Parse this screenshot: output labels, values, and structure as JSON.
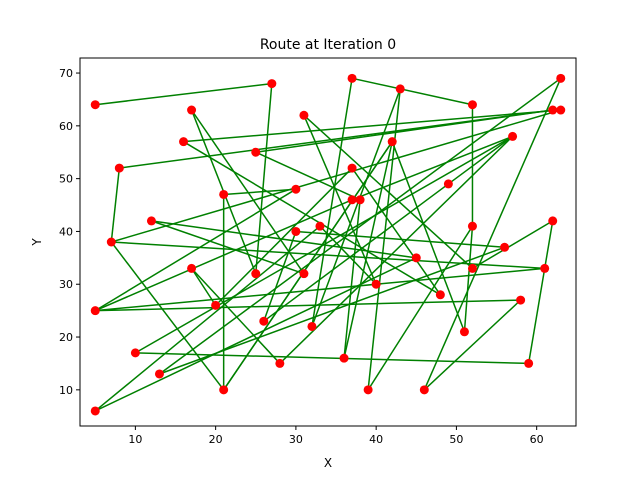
{
  "chart_data": {
    "type": "scatter",
    "title": "Route at Iteration 0",
    "xlabel": "X",
    "ylabel": "Y",
    "xlim": [
      3.1,
      64.9
    ],
    "ylim": [
      3.15,
      72.85
    ],
    "xticks": [
      10,
      20,
      30,
      40,
      50,
      60
    ],
    "yticks": [
      10,
      20,
      30,
      40,
      50,
      60,
      70
    ],
    "grid": false,
    "route_color": "#008000",
    "point_color": "#ff0000",
    "route": [
      [
        5,
        64
      ],
      [
        27,
        68
      ],
      [
        25,
        32
      ],
      [
        17,
        63
      ],
      [
        31,
        32
      ],
      [
        12,
        42
      ],
      [
        45,
        35
      ],
      [
        5,
        6
      ],
      [
        33,
        41
      ],
      [
        40,
        30
      ],
      [
        31,
        62
      ],
      [
        52,
        33
      ],
      [
        62,
        42
      ],
      [
        59,
        15
      ],
      [
        10,
        17
      ],
      [
        57,
        58
      ],
      [
        37,
        46
      ],
      [
        5,
        25
      ],
      [
        30,
        48
      ],
      [
        21,
        47
      ],
      [
        21,
        10
      ],
      [
        42,
        57
      ],
      [
        36,
        16
      ],
      [
        38,
        46
      ],
      [
        25,
        55
      ],
      [
        62,
        63
      ],
      [
        8,
        52
      ],
      [
        7,
        38
      ],
      [
        61,
        33
      ],
      [
        5,
        25
      ],
      [
        58,
        27
      ],
      [
        46,
        10
      ],
      [
        63,
        69
      ],
      [
        13,
        13
      ],
      [
        56,
        37
      ],
      [
        30,
        40
      ],
      [
        26,
        23
      ],
      [
        49,
        49
      ],
      [
        57,
        58
      ],
      [
        28,
        15
      ],
      [
        17,
        33
      ],
      [
        20,
        26
      ],
      [
        37,
        52
      ],
      [
        48,
        28
      ],
      [
        16,
        57
      ],
      [
        63,
        63
      ],
      [
        7,
        38
      ],
      [
        21,
        10
      ],
      [
        42,
        57
      ],
      [
        51,
        21
      ],
      [
        52,
        41
      ],
      [
        39,
        10
      ],
      [
        43,
        67
      ],
      [
        32,
        22
      ],
      [
        37,
        69
      ],
      [
        52,
        64
      ],
      [
        52,
        41
      ]
    ]
  }
}
